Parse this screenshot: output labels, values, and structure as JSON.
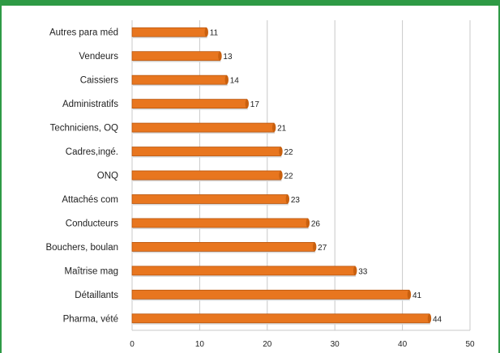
{
  "chart_data": {
    "type": "bar",
    "orientation": "horizontal",
    "categories": [
      "Autres para méd",
      "Vendeurs",
      "Caissiers",
      "Administratifs",
      "Techniciens, OQ",
      "Cadres,ingé.",
      "ONQ",
      "Attachés com",
      "Conducteurs",
      "Bouchers, boulan",
      "Maîtrise mag",
      "Détaillants",
      "Pharma, vété"
    ],
    "values": [
      11,
      13,
      14,
      17,
      21,
      22,
      22,
      23,
      26,
      27,
      33,
      41,
      44
    ],
    "xlim": [
      0,
      50
    ],
    "xticks": [
      0,
      10,
      20,
      30,
      40,
      50
    ],
    "grid": true,
    "colors": {
      "bar": "#e8761f",
      "bar_edge": "#b8560e",
      "grid": "#c8c8c8",
      "frame": "#2e9a45"
    }
  }
}
